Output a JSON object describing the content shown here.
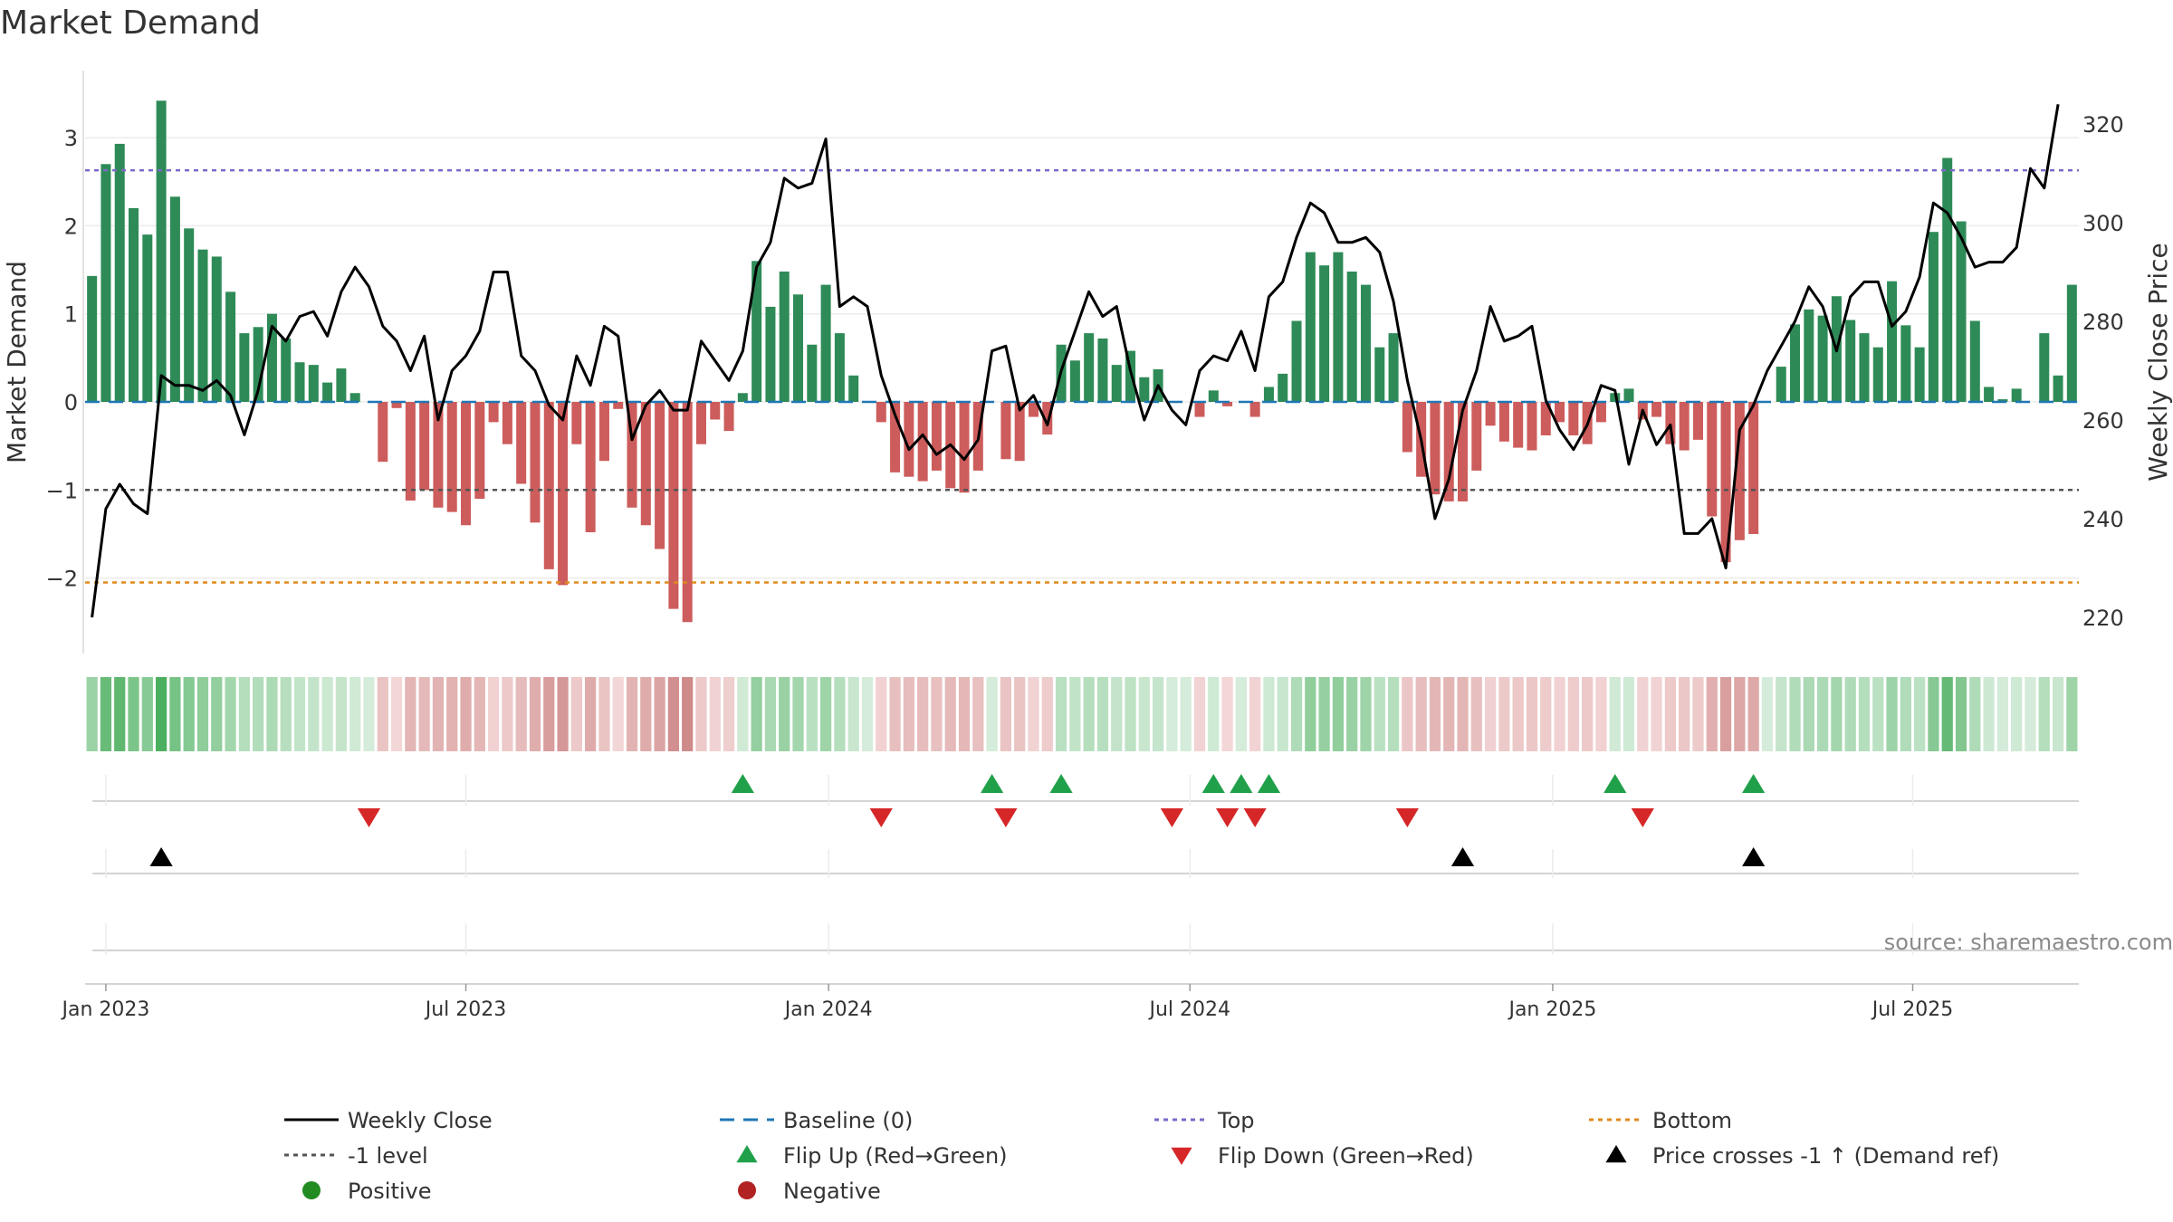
{
  "chart_data": {
    "type": "bar",
    "title": "Market Demand",
    "ylabel": "Market Demand",
    "y2label": "Weekly Close Price",
    "ylim": [
      -2.7,
      3.7
    ],
    "y2lim": [
      215,
      330
    ],
    "yticks": [
      -2,
      -1,
      0,
      1,
      2,
      3
    ],
    "yticklabels": [
      "−2",
      "−1",
      "0",
      "1",
      "2",
      "3"
    ],
    "y2ticks": [
      220,
      240,
      260,
      280,
      300,
      320
    ],
    "xlim": [
      0,
      144
    ],
    "xticks": [
      {
        "label": "Jan 2023",
        "x": 1.5
      },
      {
        "label": "Jul 2023",
        "x": 27.5
      },
      {
        "label": "Jan 2024",
        "x": 53.7
      },
      {
        "label": "Jul 2024",
        "x": 79.8
      },
      {
        "label": "Jan 2025",
        "x": 106.0
      },
      {
        "label": "Jul 2025",
        "x": 132.0
      }
    ],
    "reference_lines": {
      "top": 2.63,
      "bottom": -2.05,
      "minus_one": -1.0,
      "baseline": 0
    },
    "source": "source: sharemaestro.com",
    "colors": {
      "positive": "#2e8b57",
      "negative": "#cd5c5c",
      "price": "#000000",
      "top": "#7b68c8",
      "bottom": "#e08a1e",
      "minus_one": "#555555",
      "baseline": "#1f77b4",
      "flip_up": "#21a04a",
      "flip_down": "#d62728",
      "cross": "#000000",
      "pos_marker": "#228b22",
      "neg_marker": "#b22222"
    },
    "demand": [
      1.43,
      2.7,
      2.93,
      2.2,
      1.9,
      3.42,
      2.33,
      1.97,
      1.73,
      1.65,
      1.25,
      0.78,
      0.85,
      1.0,
      0.72,
      0.45,
      0.42,
      0.22,
      0.38,
      0.1,
      0,
      -0.68,
      -0.07,
      -1.12,
      -1.0,
      -1.2,
      -1.25,
      -1.4,
      -1.1,
      -0.23,
      -0.48,
      -0.93,
      -1.37,
      -1.9,
      -2.08,
      -0.48,
      -1.48,
      -0.67,
      -0.08,
      -1.2,
      -1.4,
      -1.67,
      -2.35,
      -2.5,
      -0.48,
      -0.2,
      -0.33,
      0.1,
      1.6,
      1.08,
      1.48,
      1.22,
      0.65,
      1.33,
      0.78,
      0.3,
      0,
      -0.23,
      -0.8,
      -0.85,
      -0.9,
      -0.78,
      -0.98,
      -1.03,
      -0.78,
      0,
      -0.65,
      -0.67,
      -0.17,
      -0.37,
      0.65,
      0.47,
      0.78,
      0.72,
      0.42,
      0.58,
      0.28,
      0.37,
      0,
      0,
      -0.17,
      0.13,
      -0.05,
      0,
      -0.17,
      0.17,
      0.32,
      0.92,
      1.7,
      1.55,
      1.7,
      1.48,
      1.33,
      0.62,
      0.78,
      -0.57,
      -0.85,
      -1.05,
      -1.13,
      -1.13,
      -0.78,
      -0.27,
      -0.45,
      -0.52,
      -0.55,
      -0.38,
      -0.23,
      -0.38,
      -0.48,
      -0.23,
      0.1,
      0.15,
      -0.2,
      -0.17,
      -0.48,
      -0.55,
      -0.43,
      -1.3,
      -1.82,
      -1.57,
      -1.5,
      0,
      0.4,
      0.88,
      1.05,
      0.98,
      1.2,
      0.93,
      0.78,
      0.62,
      1.37,
      0.87,
      0.62,
      1.93,
      2.77,
      2.05,
      0.92,
      0.17,
      0.03,
      0.15,
      0,
      0.78,
      0.3,
      1.33
    ],
    "price": [
      220,
      242,
      247,
      243,
      241,
      269,
      267,
      267,
      266,
      268,
      265,
      257,
      266,
      279,
      276,
      281,
      282,
      277,
      286,
      291,
      287,
      279,
      276,
      270,
      277,
      260,
      270,
      273,
      278,
      290,
      290,
      273,
      270,
      263,
      260,
      273,
      267,
      279,
      277,
      256,
      263,
      266,
      262,
      262,
      276,
      272,
      268,
      274,
      291,
      296,
      309,
      307,
      308,
      317,
      283,
      285,
      283,
      269,
      261,
      254,
      257,
      253,
      255,
      252,
      256,
      274,
      275,
      262,
      265,
      259,
      270,
      278,
      286,
      281,
      283,
      270,
      260,
      267,
      262,
      259,
      270,
      273,
      272,
      278,
      270,
      285,
      288,
      297,
      304,
      302,
      296,
      296,
      297,
      294,
      284,
      268,
      256,
      240,
      248,
      262,
      270,
      283,
      276,
      277,
      279,
      264,
      258,
      254,
      259,
      267,
      266,
      251,
      262,
      255,
      259,
      237,
      237,
      240,
      230,
      258,
      263,
      270,
      275,
      280,
      287,
      283,
      274,
      285,
      288,
      288,
      279,
      282,
      289,
      304,
      302,
      297,
      291,
      292,
      292,
      295,
      311,
      307,
      324
    ],
    "flip_up": [
      47,
      65,
      70,
      81,
      83,
      85,
      110,
      120
    ],
    "flip_down": [
      20,
      57,
      66,
      78,
      82,
      84,
      95,
      112
    ],
    "price_cross": [
      5,
      99,
      120
    ],
    "legend": [
      {
        "label": "Weekly Close",
        "kind": "line-solid",
        "color": "#000000"
      },
      {
        "label": "Baseline (0)",
        "kind": "line-dash",
        "color": "#1f77b4"
      },
      {
        "label": "Top",
        "kind": "line-dot",
        "color": "#7b68c8"
      },
      {
        "label": "Bottom",
        "kind": "line-dot",
        "color": "#e08a1e"
      },
      {
        "label": "-1 level",
        "kind": "line-dot",
        "color": "#555555"
      },
      {
        "label": "Flip Up (Red→Green)",
        "kind": "tri-up",
        "color": "#21a04a"
      },
      {
        "label": "Flip Down (Green→Red)",
        "kind": "tri-down",
        "color": "#d62728"
      },
      {
        "label": "Price crosses -1 ↑ (Demand ref)",
        "kind": "tri-up",
        "color": "#000000"
      },
      {
        "label": "Positive",
        "kind": "dot",
        "color": "#228b22"
      },
      {
        "label": "Negative",
        "kind": "dot",
        "color": "#b22222"
      }
    ]
  }
}
